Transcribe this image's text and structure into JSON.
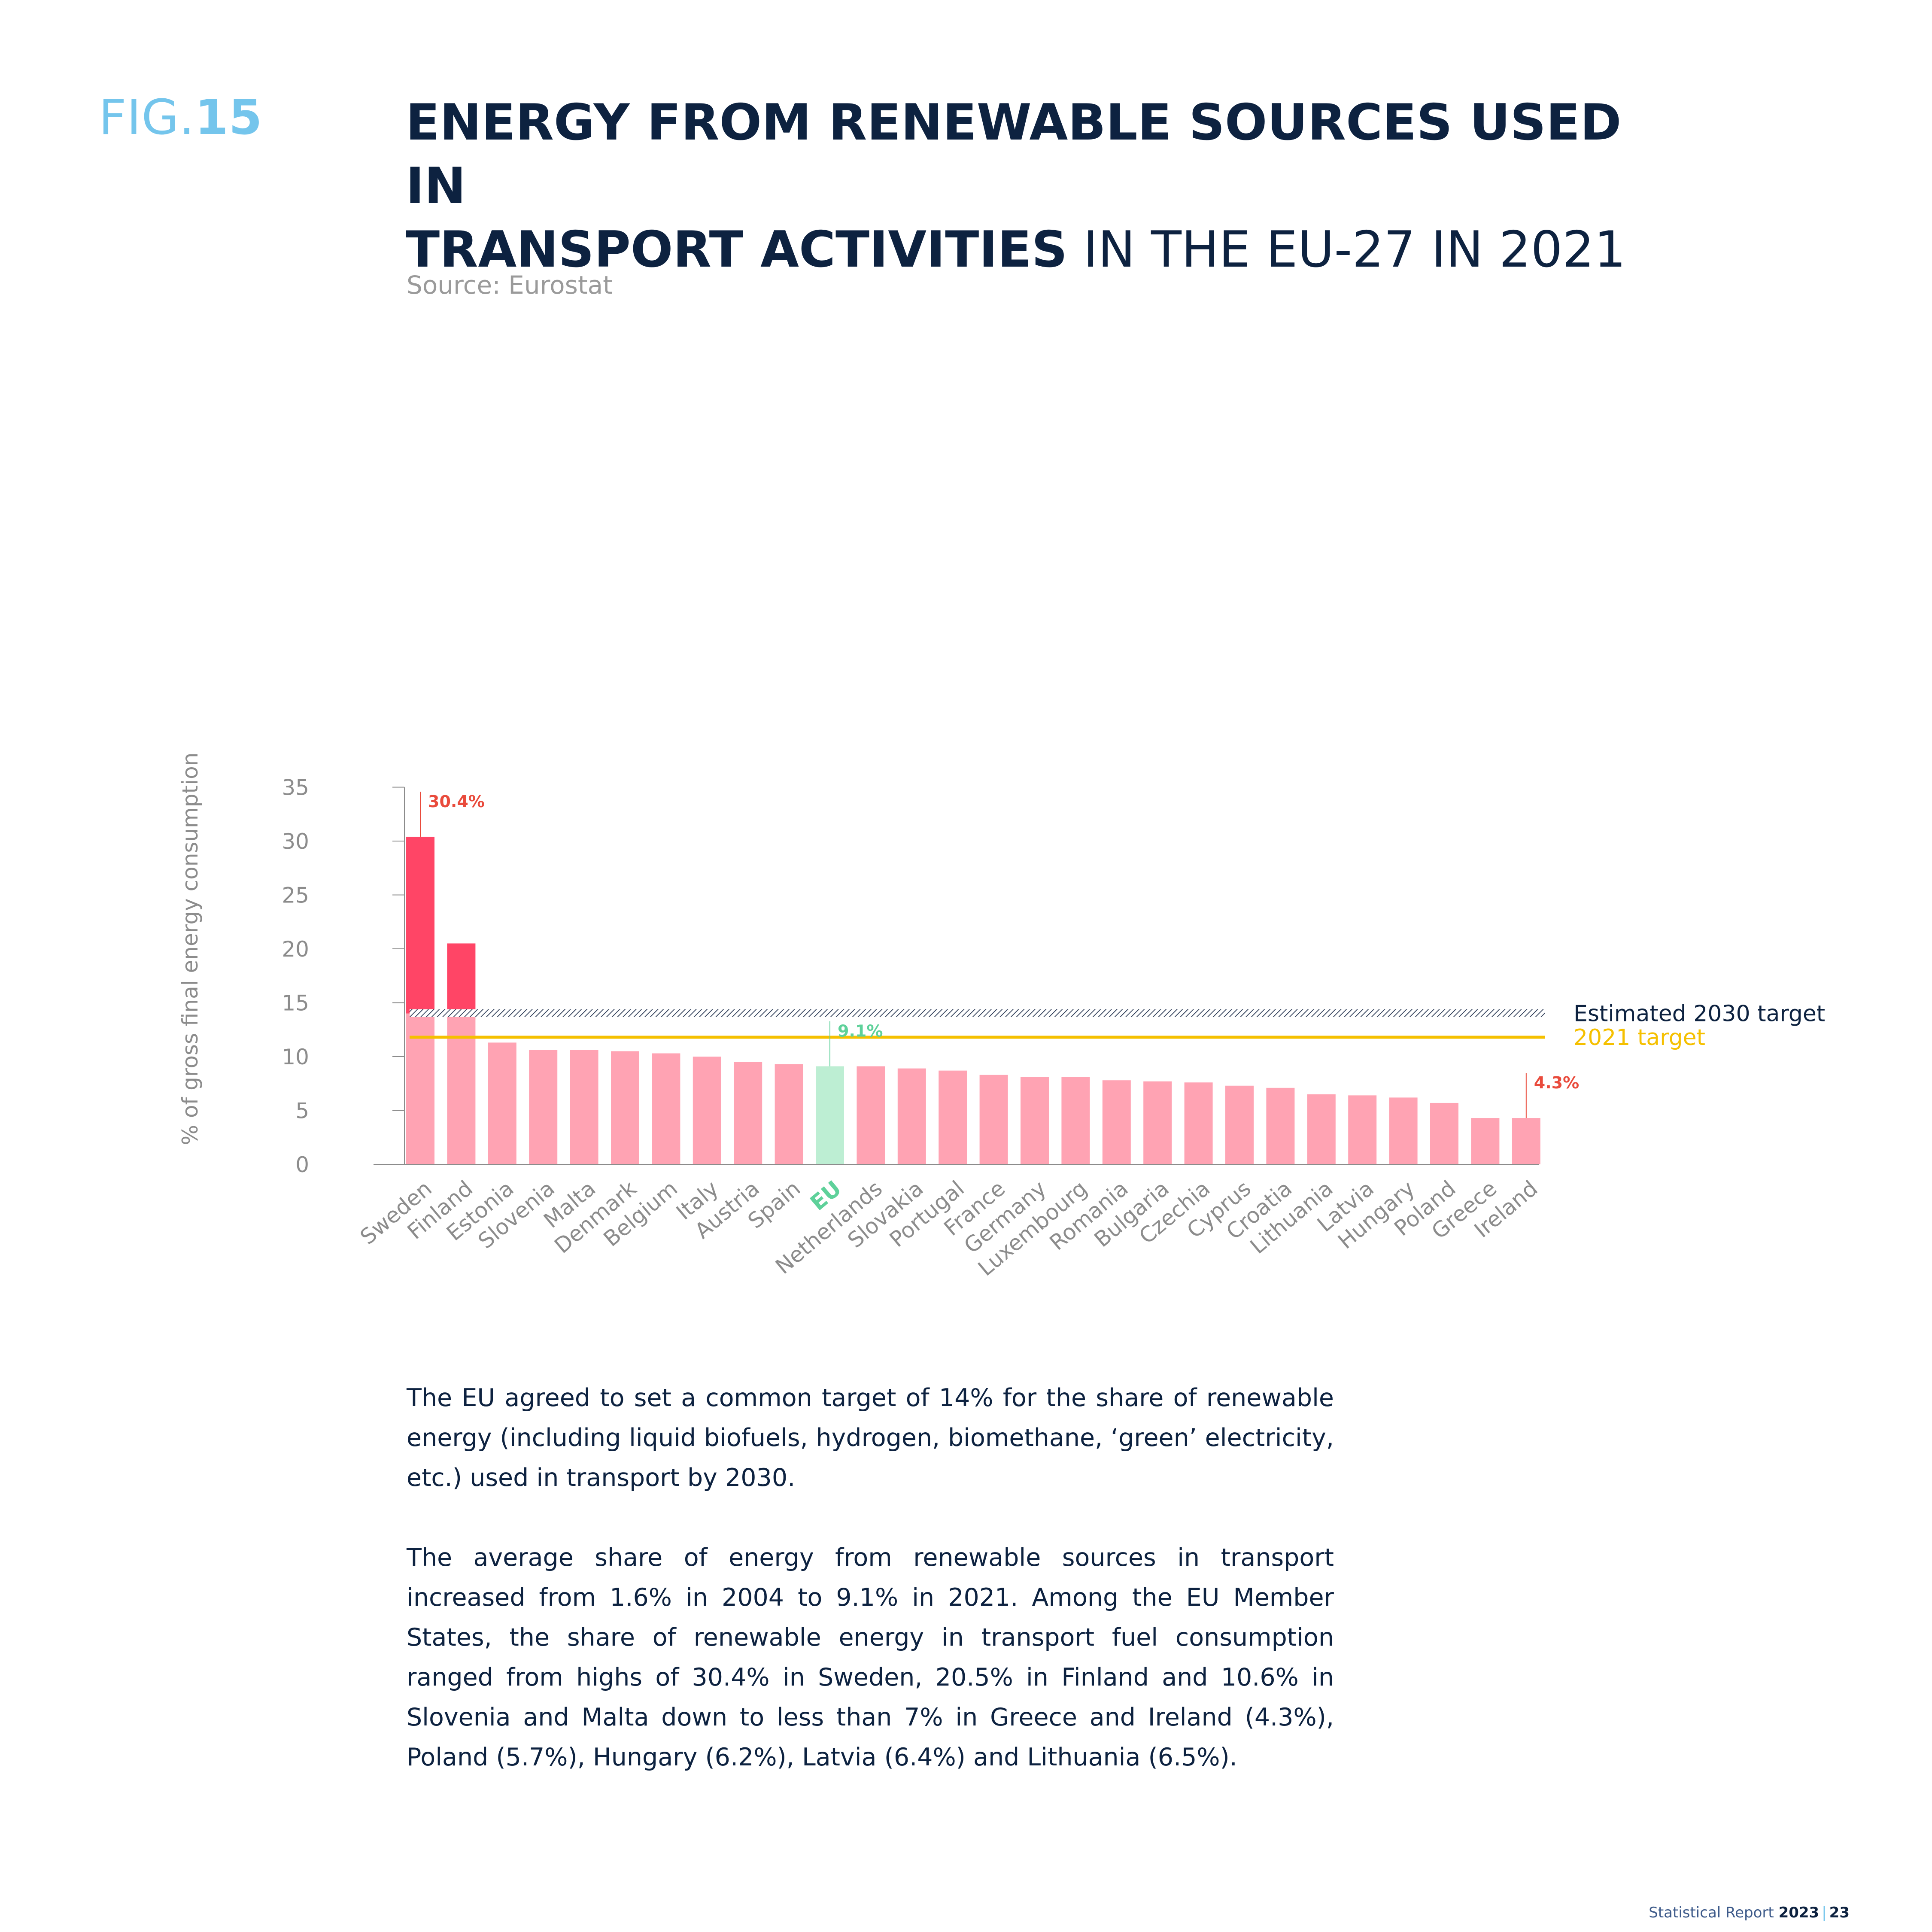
{
  "header": {
    "fig_prefix": "FIG.",
    "fig_number": "15",
    "title_bold_1": "ENERGY FROM RENEWABLE SOURCES USED IN",
    "title_bold_2": "TRANSPORT ACTIVITIES",
    "title_light_2": " IN THE EU-27 IN 2021",
    "source": "Source: Eurostat"
  },
  "chart_data": {
    "type": "bar",
    "ylabel": "% of gross final energy consumption",
    "ylim": [
      0,
      35
    ],
    "yticks": [
      0,
      5,
      10,
      15,
      20,
      25,
      30,
      35
    ],
    "categories": [
      "Sweden",
      "Finland",
      "Estonia",
      "Slovenia",
      "Malta",
      "Denmark",
      "Belgium",
      "Italy",
      "Austria",
      "Spain",
      "EU",
      "Netherlands",
      "Slovakia",
      "Portugal",
      "France",
      "Germany",
      "Luxembourg",
      "Romania",
      "Bulgaria",
      "Czechia",
      "Cyprus",
      "Croatia",
      "Lithuania",
      "Latvia",
      "Hungary",
      "Poland",
      "Greece",
      "Ireland"
    ],
    "values": [
      30.4,
      20.5,
      11.3,
      10.6,
      10.6,
      10.5,
      10.3,
      10.0,
      9.5,
      9.3,
      9.1,
      9.1,
      8.9,
      8.7,
      8.3,
      8.1,
      8.1,
      7.8,
      7.7,
      7.6,
      7.3,
      7.1,
      6.5,
      6.4,
      6.2,
      5.7,
      4.3,
      4.3
    ],
    "highlight_category": "EU",
    "callouts": [
      {
        "category": "Sweden",
        "label": "30.4%",
        "color": "#e94b3c"
      },
      {
        "category": "EU",
        "label": "9.1%",
        "color": "#5ed19a"
      },
      {
        "category": "Ireland",
        "label": "4.3%",
        "color": "#e94b3c"
      }
    ],
    "reference_lines": [
      {
        "label": "Estimated 2030 target",
        "value": 14,
        "style": "hatched",
        "color": "#2b3a55"
      },
      {
        "label": "2021 target",
        "value": 11.8,
        "style": "solid",
        "color": "#f5c000"
      }
    ],
    "colors": {
      "bar": "#ffa3b3",
      "bar_above_target": "#ff4566",
      "eu_bar": "#bdeed3",
      "axis": "#8c8c8c",
      "target_2021": "#f5c000",
      "target_2030": "#2b3a55"
    }
  },
  "body": {
    "paragraph_1": "The EU agreed to set a common target of 14% for the share of renewable energy (including liquid biofuels, hydrogen, biomethane, ‘green’ electricity, etc.) used in transport by 2030.",
    "paragraph_2": "The average share of energy from renewable sources in transport increased from 1.6% in 2004 to 9.1% in 2021. Among the EU Member States, the share of renewable energy in transport fuel consumption ranged from highs of 30.4% in Sweden, 20.5% in Finland and 10.6% in Slovenia and Malta down to less than 7% in Greece and Ireland (4.3%), Poland (5.7%), Hungary (6.2%), Latvia (6.4%) and Lithuania (6.5%)."
  },
  "footer": {
    "report": "Statistical Report ",
    "year": "2023",
    "separator": "|",
    "page": "23"
  }
}
